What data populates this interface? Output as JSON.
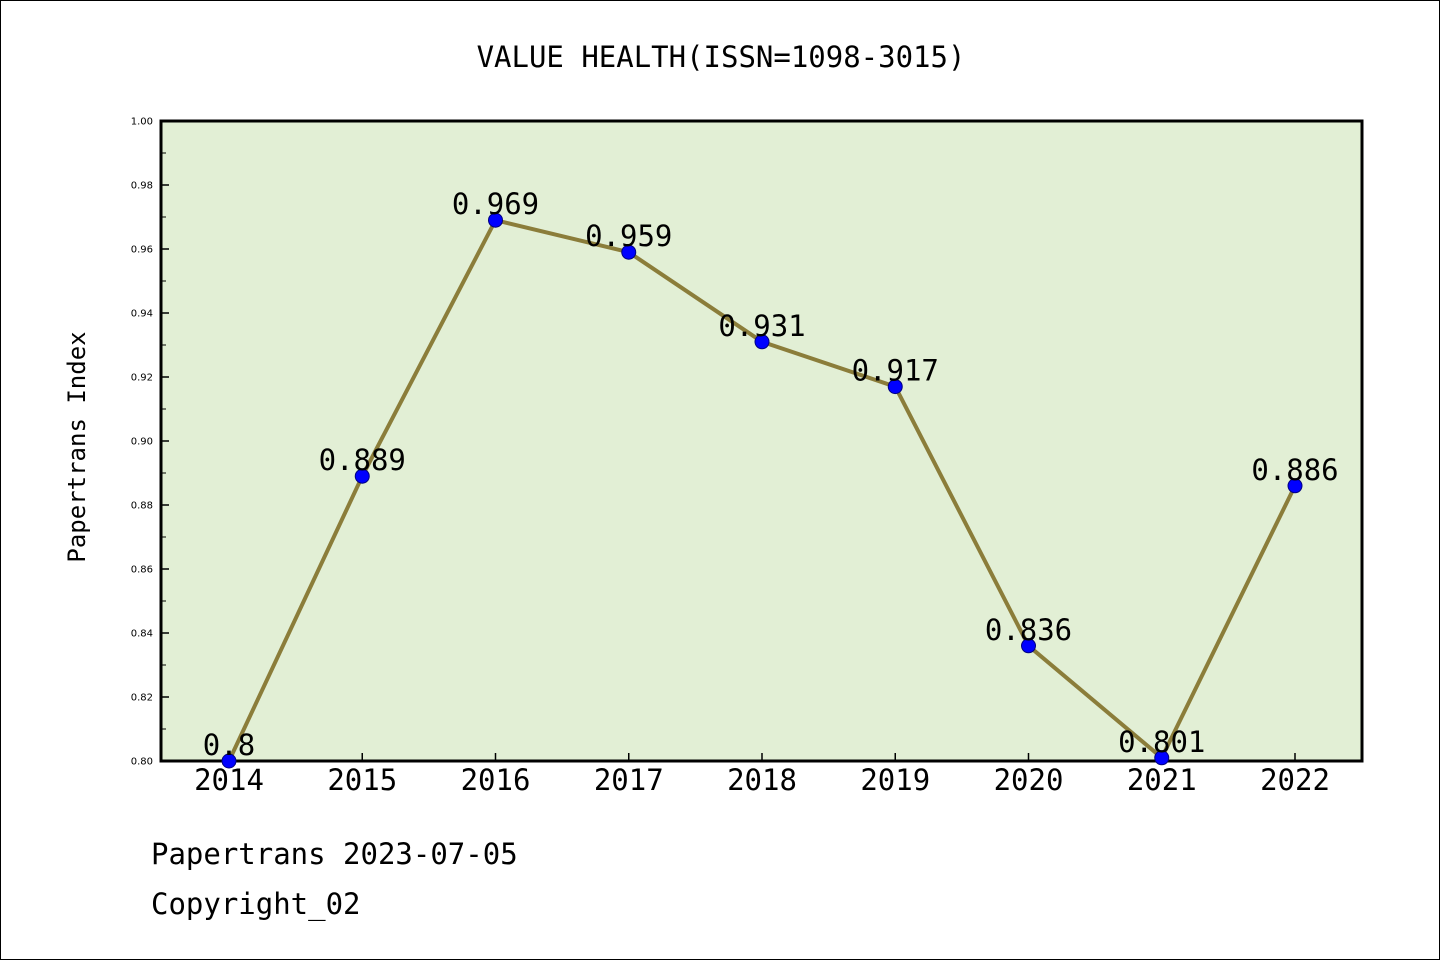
{
  "chart_data": {
    "type": "line",
    "title": "VALUE HEALTH(ISSN=1098-3015)",
    "xlabel": "",
    "ylabel": "Papertrans Index",
    "categories": [
      "2014",
      "2015",
      "2016",
      "2017",
      "2018",
      "2019",
      "2020",
      "2021",
      "2022"
    ],
    "series": [
      {
        "values": [
          0.8,
          0.889,
          0.969,
          0.959,
          0.931,
          0.917,
          0.836,
          0.801,
          0.886
        ],
        "data_labels": [
          "0.8",
          "0.889",
          "0.969",
          "0.959",
          "0.931",
          "0.917",
          "0.836",
          "0.801",
          "0.886"
        ]
      }
    ],
    "ylim": [
      0.8,
      1.0
    ],
    "yticks": [
      "0.80",
      "0.82",
      "0.84",
      "0.86",
      "0.88",
      "0.90",
      "0.92",
      "0.94",
      "0.96",
      "0.98",
      "1.00"
    ],
    "grid": false,
    "legend": "none",
    "colors": {
      "plot_background": "#e2efd5",
      "line": "#8b7d3a",
      "marker_fill": "#0000ff",
      "marker_edge": "#000080"
    }
  },
  "footer": {
    "source": "Papertrans 2023-07-05",
    "copyright": "Copyright_02"
  }
}
